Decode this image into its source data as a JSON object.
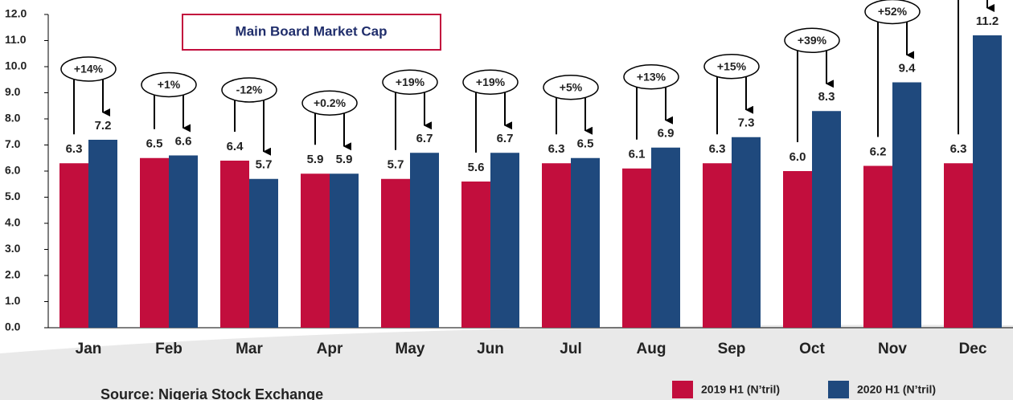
{
  "chart_data": {
    "type": "bar",
    "title": "Main Board Market Cap",
    "categories": [
      "Jan",
      "Feb",
      "Mar",
      "Apr",
      "May",
      "Jun",
      "Jul",
      "Aug",
      "Sep",
      "Oct",
      "Nov",
      "Dec"
    ],
    "series": [
      {
        "name": "2019 H1 (N’tril)",
        "color": "#c20e3d",
        "values": [
          6.3,
          6.5,
          6.4,
          5.9,
          5.7,
          5.6,
          6.3,
          6.1,
          6.3,
          6.0,
          6.2,
          6.3
        ],
        "value_labels": [
          "6.3",
          "6.5",
          "6.4",
          "5.9",
          "5.7",
          "5.6",
          "6.3",
          "6.1",
          "6.3",
          "6.0",
          "6.2",
          "6.3"
        ]
      },
      {
        "name": "2020 H1 (N’tril)",
        "color": "#1f497d",
        "values": [
          7.2,
          6.6,
          5.7,
          5.9,
          6.7,
          6.7,
          6.5,
          6.9,
          7.3,
          8.3,
          9.4,
          11.2
        ],
        "value_labels": [
          "7.2",
          "6.6",
          "5.7",
          "5.9",
          "6.7",
          "6.7",
          "6.5",
          "6.9",
          "7.3",
          "8.3",
          "9.4",
          "11.2"
        ]
      }
    ],
    "annotations": [
      "+14%",
      "+1%",
      "-12%",
      "+0.2%",
      "+19%",
      "+19%",
      "+5%",
      "+13%",
      "+15%",
      "+39%",
      "+52%",
      null
    ],
    "ylim": [
      0,
      12
    ],
    "yticks": [
      {
        "value": 0,
        "label": "0.0"
      },
      {
        "value": 1,
        "label": "1.0"
      },
      {
        "value": 2,
        "label": "2.0"
      },
      {
        "value": 3,
        "label": "3.0"
      },
      {
        "value": 4,
        "label": "4.0"
      },
      {
        "value": 5,
        "label": "5.0"
      },
      {
        "value": 6,
        "label": "6.0"
      },
      {
        "value": 7,
        "label": "7.0"
      },
      {
        "value": 8,
        "label": "8.0"
      },
      {
        "value": 9,
        "label": "9.0"
      },
      {
        "value": 10,
        "label": "10.0"
      },
      {
        "value": 11,
        "label": "11.0"
      },
      {
        "value": 12,
        "label": "12.0"
      }
    ],
    "source": "Source: Nigeria Stock Exchange",
    "legend": "bottom-right"
  }
}
